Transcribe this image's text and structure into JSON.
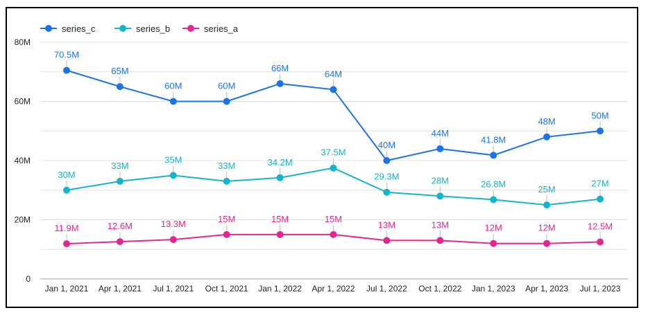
{
  "chart_data": {
    "type": "line",
    "categories": [
      "Jan 1, 2021",
      "Apr 1, 2021",
      "Jul 1, 2021",
      "Oct 1, 2021",
      "Jan 1, 2022",
      "Apr 1, 2022",
      "Jul 1, 2022",
      "Oct 1, 2022",
      "Jan 1, 2023",
      "Apr 1, 2023",
      "Jul 1, 2023"
    ],
    "ylim": [
      0,
      80
    ],
    "yticks": [
      0,
      20,
      40,
      60,
      80
    ],
    "ytick_labels": [
      "0",
      "20M",
      "40M",
      "60M",
      "80M"
    ],
    "legend_position": "top-left",
    "grid": true,
    "series": [
      {
        "name": "series_c",
        "color": "#1a73e8",
        "values": [
          70.5,
          65,
          60,
          60,
          66,
          64,
          40,
          44,
          41.8,
          48,
          50
        ],
        "labels": [
          "70.5M",
          "65M",
          "60M",
          "60M",
          "66M",
          "64M",
          "40M",
          "44M",
          "41.8M",
          "48M",
          "50M"
        ]
      },
      {
        "name": "series_b",
        "color": "#12b5cb",
        "values": [
          30,
          33,
          35,
          33,
          34.2,
          37.5,
          29.3,
          28,
          26.8,
          25,
          27
        ],
        "labels": [
          "30M",
          "33M",
          "35M",
          "33M",
          "34.2M",
          "37.5M",
          "29.3M",
          "28M",
          "26.8M",
          "25M",
          "27M"
        ]
      },
      {
        "name": "series_a",
        "color": "#e52592",
        "values": [
          11.9,
          12.6,
          13.3,
          15,
          15,
          15,
          13,
          13,
          12,
          12,
          12.5
        ],
        "labels": [
          "11.9M",
          "12.6M",
          "13.3M",
          "15M",
          "15M",
          "15M",
          "13M",
          "13M",
          "12M",
          "12M",
          "12.5M"
        ]
      }
    ]
  }
}
